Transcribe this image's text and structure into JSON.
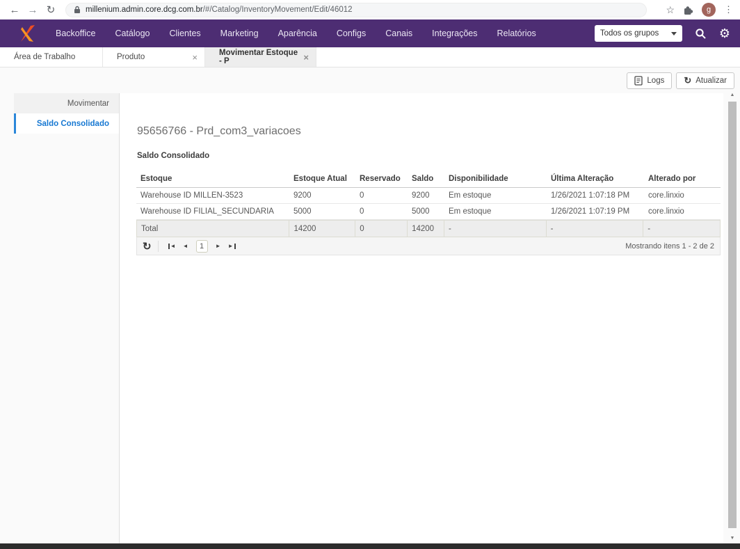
{
  "browser": {
    "url_domain": "millenium.admin.core.dcg.com.br",
    "url_path": "/#/Catalog/InventoryMovement/Edit/46012",
    "avatar_letter": "g"
  },
  "colors": {
    "navbar_bg": "#4d2d73",
    "active_blue": "#1778d2",
    "logo_orange": "#ee4e23",
    "avatar_bg": "#a2655c"
  },
  "navbar": {
    "items": [
      "Backoffice",
      "Catálogo",
      "Clientes",
      "Marketing",
      "Aparência",
      "Configs",
      "Canais",
      "Integrações",
      "Relatórios"
    ],
    "group_select": "Todos os grupos"
  },
  "tabs": [
    {
      "label": "Área de Trabalho",
      "closable": false,
      "active": false
    },
    {
      "label": "Produto",
      "closable": true,
      "active": false
    },
    {
      "label": "Movimentar Estoque - P",
      "closable": true,
      "active": true
    }
  ],
  "toolbar": {
    "logs_label": "Logs",
    "refresh_label": "Atualizar"
  },
  "sidebar": {
    "items": [
      {
        "label": "Movimentar",
        "active": false
      },
      {
        "label": "Saldo Consolidado",
        "active": true
      }
    ]
  },
  "main": {
    "title": "95656766 - Prd_com3_variacoes",
    "section_title": "Saldo Consolidado",
    "table": {
      "headers": [
        "Estoque",
        "Estoque Atual",
        "Reservado",
        "Saldo",
        "Disponibilidade",
        "Última Alteração",
        "Alterado por"
      ],
      "rows": [
        [
          "Warehouse ID MILLEN-3523",
          "9200",
          "0",
          "9200",
          "Em estoque",
          "1/26/2021 1:07:18 PM",
          "core.linxio"
        ],
        [
          "Warehouse ID FILIAL_SECUNDARIA",
          "5000",
          "0",
          "5000",
          "Em estoque",
          "1/26/2021 1:07:19 PM",
          "core.linxio"
        ]
      ],
      "total_row": [
        "Total",
        "14200",
        "0",
        "14200",
        "-",
        "-",
        "-"
      ]
    },
    "pager": {
      "page": "1",
      "status": "Mostrando itens 1 - 2 de 2"
    }
  }
}
